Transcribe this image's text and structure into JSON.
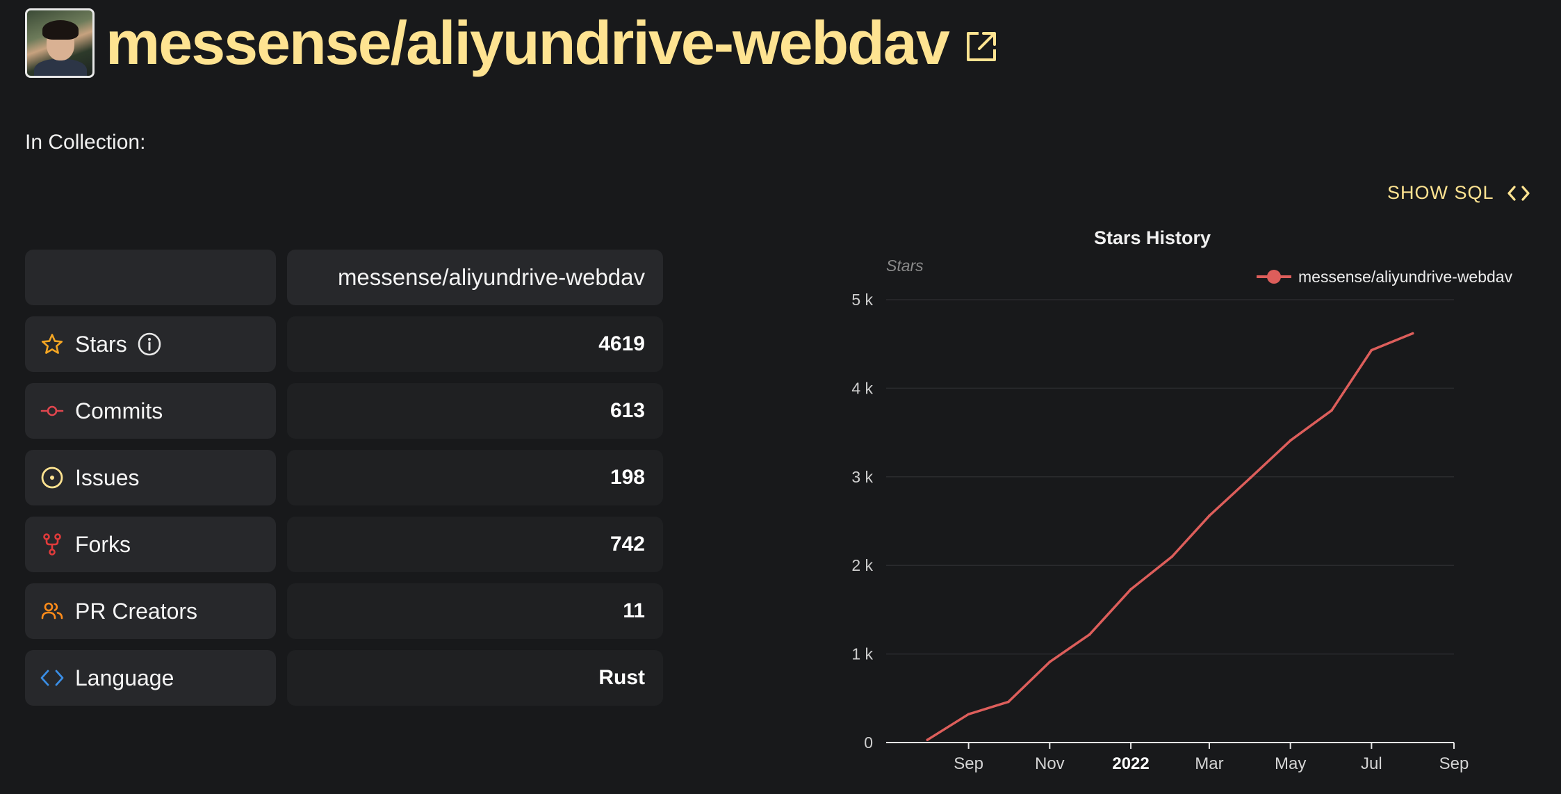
{
  "repo": {
    "title": "messense/aliyundrive-webdav",
    "collection_label": "In Collection:"
  },
  "toolbar": {
    "show_sql": "SHOW SQL"
  },
  "table": {
    "header_value": "messense/aliyundrive-webdav",
    "rows": [
      {
        "label": "Stars",
        "value": "4619",
        "icon": "star-icon",
        "color": "#f5a623"
      },
      {
        "label": "Commits",
        "value": "613",
        "icon": "commit-icon",
        "color": "#e0464e"
      },
      {
        "label": "Issues",
        "value": "198",
        "icon": "issue-icon",
        "color": "#fee391"
      },
      {
        "label": "Forks",
        "value": "742",
        "icon": "fork-icon",
        "color": "#e03b3b"
      },
      {
        "label": "PR Creators",
        "value": "11",
        "icon": "pr-creators-icon",
        "color": "#ff8c1a"
      },
      {
        "label": "Language",
        "value": "Rust",
        "icon": "code-icon",
        "color": "#3a8ee6"
      }
    ]
  },
  "chart_data": {
    "type": "line",
    "title": "Stars History",
    "ylabel": "Stars",
    "legend_position": "top-right",
    "ylim": [
      0,
      5000
    ],
    "y_ticks": [
      "0",
      "1 k",
      "2 k",
      "3 k",
      "4 k",
      "5 k"
    ],
    "x_ticks": [
      "Sep",
      "Nov",
      "2022",
      "Mar",
      "May",
      "Jul",
      "Sep"
    ],
    "x_range": [
      "2021-07-01",
      "2022-09-01"
    ],
    "grid": true,
    "series": [
      {
        "name": "messense/aliyundrive-webdav",
        "color": "#dd5e5b",
        "points": [
          {
            "x": "2021-08-01",
            "y": 30
          },
          {
            "x": "2021-09-01",
            "y": 320
          },
          {
            "x": "2021-10-01",
            "y": 460
          },
          {
            "x": "2021-11-01",
            "y": 910
          },
          {
            "x": "2021-12-01",
            "y": 1220
          },
          {
            "x": "2022-01-01",
            "y": 1730
          },
          {
            "x": "2022-02-01",
            "y": 2100
          },
          {
            "x": "2022-03-01",
            "y": 2560
          },
          {
            "x": "2022-04-01",
            "y": 2990
          },
          {
            "x": "2022-05-01",
            "y": 3410
          },
          {
            "x": "2022-06-01",
            "y": 3750
          },
          {
            "x": "2022-07-01",
            "y": 4430
          },
          {
            "x": "2022-08-01",
            "y": 4619
          }
        ]
      }
    ]
  }
}
